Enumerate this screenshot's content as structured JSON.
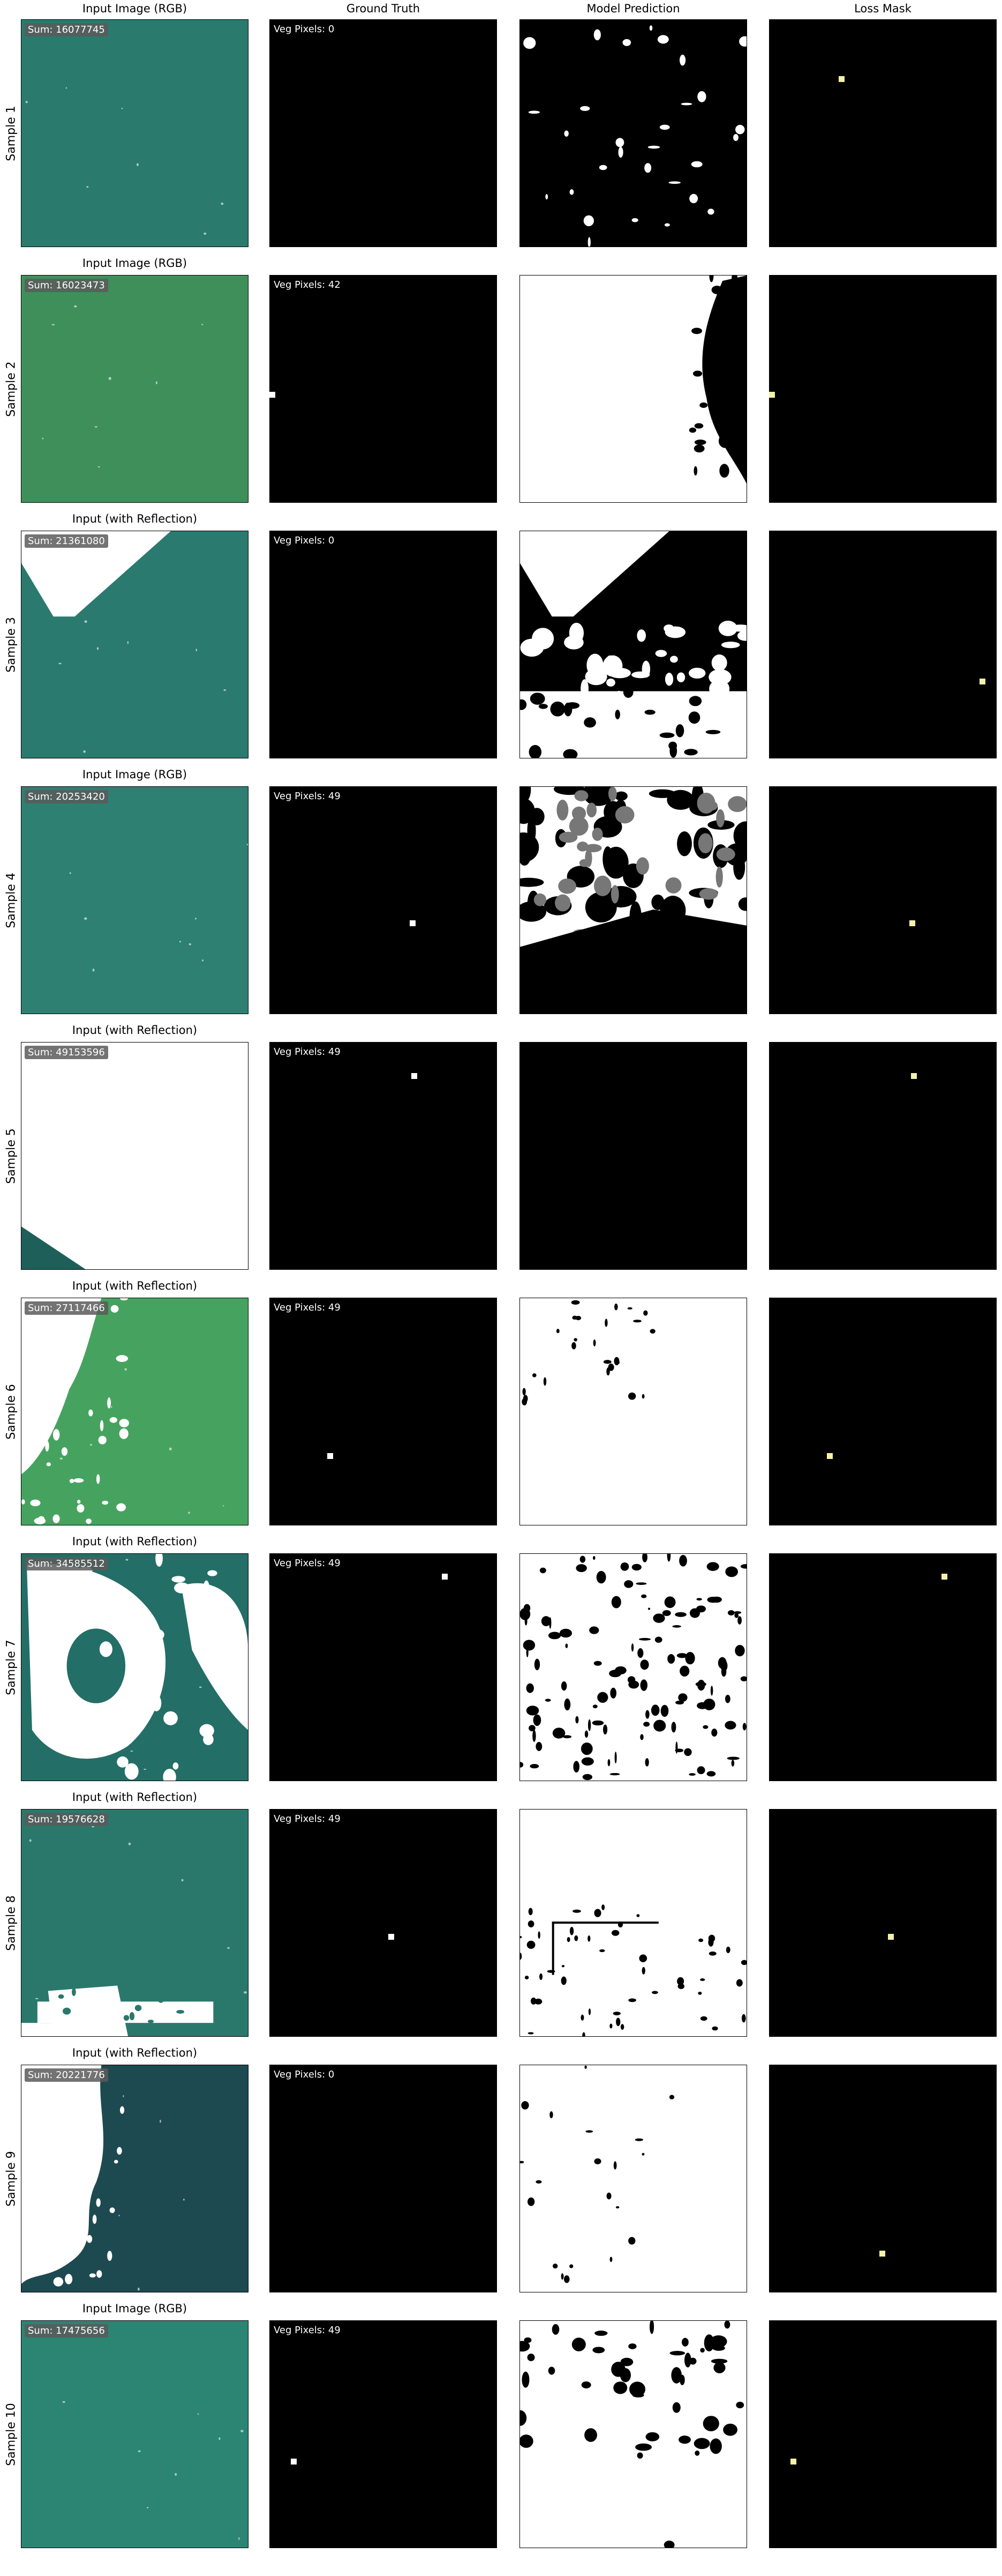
{
  "column_titles": [
    "",
    "Ground Truth",
    "Model Prediction",
    "Loss Mask"
  ],
  "samples": [
    {
      "label": "Sample 1",
      "input_title": "Input Image (RGB)",
      "sum_text": "Sum: 16077745",
      "veg_text": "Veg Pixels: 0",
      "input_color": "#2a7a6e"
    },
    {
      "label": "Sample 2",
      "input_title": "Input Image (RGB)",
      "sum_text": "Sum: 16023473",
      "veg_text": "Veg Pixels: 42",
      "input_color": "#3f8f5a"
    },
    {
      "label": "Sample 3",
      "input_title": "Input (with Reflection)",
      "sum_text": "Sum: 21361080",
      "veg_text": "Veg Pixels: 0",
      "input_color": "#2b7a6f"
    },
    {
      "label": "Sample 4",
      "input_title": "Input Image (RGB)",
      "sum_text": "Sum: 20253420",
      "veg_text": "Veg Pixels: 49",
      "input_color": "#2d8072"
    },
    {
      "label": "Sample 5",
      "input_title": "Input (with Reflection)",
      "sum_text": "Sum: 49153596",
      "veg_text": "Veg Pixels: 49",
      "input_color": "#1f5f5a"
    },
    {
      "label": "Sample 6",
      "input_title": "Input (with Reflection)",
      "sum_text": "Sum: 27117466",
      "veg_text": "Veg Pixels: 49",
      "input_color": "#46a35f"
    },
    {
      "label": "Sample 7",
      "input_title": "Input (with Reflection)",
      "sum_text": "Sum: 34585512",
      "veg_text": "Veg Pixels: 49",
      "input_color": "#236e66"
    },
    {
      "label": "Sample 8",
      "input_title": "Input (with Reflection)",
      "sum_text": "Sum: 19576628",
      "veg_text": "Veg Pixels: 49",
      "input_color": "#2a786c"
    },
    {
      "label": "Sample 9",
      "input_title": "Input (with Reflection)",
      "sum_text": "Sum: 20221776",
      "veg_text": "Veg Pixels: 0",
      "input_color": "#1d4a50"
    },
    {
      "label": "Sample 10",
      "input_title": "Input Image (RGB)",
      "sum_text": "Sum: 17475656",
      "veg_text": "Veg Pixels: 49",
      "input_color": "#2b8572"
    }
  ],
  "colors": {
    "mask_bg": "#000000",
    "marker": "#f5f1a8",
    "white": "#ffffff"
  }
}
